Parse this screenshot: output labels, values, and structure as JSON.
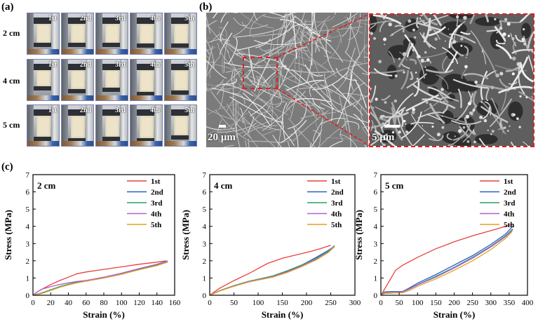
{
  "panel_a": {
    "label": "(a)",
    "column_labels": [
      "1st",
      "2nd",
      "3rd",
      "4th",
      "5th"
    ],
    "rows": [
      {
        "label": "2 cm",
        "sample_len": [
          0.72,
          0.7,
          0.72,
          0.74,
          0.74
        ]
      },
      {
        "label": "4 cm",
        "sample_len": [
          0.6,
          0.72,
          0.66,
          0.82,
          0.76
        ]
      },
      {
        "label": "5 cm",
        "sample_len": [
          0.78,
          0.84,
          0.8,
          0.84,
          0.74
        ]
      }
    ]
  },
  "panel_b": {
    "label": "(b)",
    "left_scale": "20 µm",
    "right_scale": "5 µm",
    "zoom_color": "#e02020"
  },
  "panel_c": {
    "label": "(c)"
  },
  "chart_data": [
    {
      "type": "line",
      "annotation": "2 cm",
      "xlabel": "Strain (%)",
      "ylabel": "Stress (MPa)",
      "xlim": [
        0,
        160
      ],
      "ylim": [
        0,
        7
      ],
      "xticks": [
        0,
        20,
        40,
        60,
        80,
        100,
        120,
        140,
        160
      ],
      "yticks": [
        0,
        1,
        2,
        3,
        4,
        5,
        6,
        7
      ],
      "legend": "top-right",
      "series": [
        {
          "name": "1st",
          "color": "#e8413c",
          "points": [
            [
              0,
              0
            ],
            [
              5,
              0.2
            ],
            [
              12,
              0.4
            ],
            [
              20,
              0.62
            ],
            [
              30,
              0.85
            ],
            [
              40,
              1.05
            ],
            [
              50,
              1.25
            ],
            [
              60,
              1.35
            ],
            [
              80,
              1.5
            ],
            [
              100,
              1.65
            ],
            [
              120,
              1.8
            ],
            [
              140,
              1.92
            ],
            [
              150,
              2.0
            ]
          ]
        },
        {
          "name": "2nd",
          "color": "#2f5fc4",
          "points": [
            [
              0,
              0
            ],
            [
              10,
              0.12
            ],
            [
              20,
              0.3
            ],
            [
              30,
              0.48
            ],
            [
              40,
              0.62
            ],
            [
              50,
              0.75
            ],
            [
              60,
              0.82
            ],
            [
              80,
              1.0
            ],
            [
              100,
              1.22
            ],
            [
              120,
              1.5
            ],
            [
              140,
              1.75
            ],
            [
              152,
              1.95
            ]
          ]
        },
        {
          "name": "3rd",
          "color": "#2aa06a",
          "points": [
            [
              0,
              0
            ],
            [
              10,
              0.14
            ],
            [
              20,
              0.32
            ],
            [
              30,
              0.5
            ],
            [
              40,
              0.64
            ],
            [
              50,
              0.76
            ],
            [
              60,
              0.84
            ],
            [
              80,
              1.02
            ],
            [
              100,
              1.24
            ],
            [
              120,
              1.5
            ],
            [
              140,
              1.76
            ],
            [
              150,
              1.92
            ]
          ]
        },
        {
          "name": "4th",
          "color": "#b45cd6",
          "points": [
            [
              0,
              0
            ],
            [
              5,
              0.2
            ],
            [
              10,
              0.35
            ],
            [
              20,
              0.5
            ],
            [
              30,
              0.62
            ],
            [
              40,
              0.72
            ],
            [
              50,
              0.8
            ],
            [
              60,
              0.86
            ],
            [
              80,
              1.05
            ],
            [
              100,
              1.28
            ],
            [
              120,
              1.55
            ],
            [
              140,
              1.8
            ],
            [
              152,
              2.0
            ]
          ]
        },
        {
          "name": "5th",
          "color": "#e0a020",
          "points": [
            [
              0,
              0
            ],
            [
              10,
              0.1
            ],
            [
              20,
              0.28
            ],
            [
              30,
              0.46
            ],
            [
              40,
              0.6
            ],
            [
              50,
              0.72
            ],
            [
              60,
              0.82
            ],
            [
              80,
              1.0
            ],
            [
              100,
              1.22
            ],
            [
              120,
              1.48
            ],
            [
              140,
              1.72
            ],
            [
              152,
              1.92
            ]
          ]
        }
      ]
    },
    {
      "type": "line",
      "annotation": "4 cm",
      "xlabel": "Strain (%)",
      "ylabel": "Stress (MPa)",
      "xlim": [
        0,
        300
      ],
      "ylim": [
        0,
        7
      ],
      "xticks": [
        0,
        50,
        100,
        150,
        200,
        250,
        300
      ],
      "yticks": [
        0,
        1,
        2,
        3,
        4,
        5,
        6,
        7
      ],
      "legend": "top-right",
      "series": [
        {
          "name": "1st",
          "color": "#e8413c",
          "points": [
            [
              0,
              0
            ],
            [
              20,
              0.4
            ],
            [
              50,
              0.85
            ],
            [
              80,
              1.25
            ],
            [
              100,
              1.55
            ],
            [
              120,
              1.85
            ],
            [
              150,
              2.15
            ],
            [
              180,
              2.35
            ],
            [
              210,
              2.55
            ],
            [
              230,
              2.72
            ],
            [
              250,
              2.9
            ]
          ]
        },
        {
          "name": "2nd",
          "color": "#2f5fc4",
          "points": [
            [
              0,
              0
            ],
            [
              20,
              0.25
            ],
            [
              50,
              0.55
            ],
            [
              80,
              0.8
            ],
            [
              100,
              0.92
            ],
            [
              130,
              1.1
            ],
            [
              160,
              1.4
            ],
            [
              190,
              1.75
            ],
            [
              220,
              2.2
            ],
            [
              245,
              2.6
            ],
            [
              258,
              2.85
            ]
          ]
        },
        {
          "name": "3rd",
          "color": "#2aa06a",
          "points": [
            [
              0,
              0
            ],
            [
              20,
              0.26
            ],
            [
              50,
              0.56
            ],
            [
              80,
              0.8
            ],
            [
              100,
              0.93
            ],
            [
              130,
              1.12
            ],
            [
              160,
              1.42
            ],
            [
              190,
              1.76
            ],
            [
              220,
              2.15
            ],
            [
              245,
              2.55
            ],
            [
              258,
              2.88
            ]
          ]
        },
        {
          "name": "4th",
          "color": "#b45cd6",
          "points": [
            [
              0,
              0
            ],
            [
              20,
              0.25
            ],
            [
              50,
              0.54
            ],
            [
              80,
              0.78
            ],
            [
              100,
              0.9
            ],
            [
              130,
              1.08
            ],
            [
              160,
              1.36
            ],
            [
              190,
              1.7
            ],
            [
              220,
              2.1
            ],
            [
              245,
              2.5
            ],
            [
              255,
              2.8
            ]
          ]
        },
        {
          "name": "5th",
          "color": "#e0a020",
          "points": [
            [
              0,
              0
            ],
            [
              20,
              0.24
            ],
            [
              50,
              0.52
            ],
            [
              80,
              0.76
            ],
            [
              100,
              0.88
            ],
            [
              130,
              1.05
            ],
            [
              160,
              1.32
            ],
            [
              190,
              1.66
            ],
            [
              220,
              2.05
            ],
            [
              245,
              2.48
            ],
            [
              258,
              2.82
            ]
          ]
        }
      ]
    },
    {
      "type": "line",
      "annotation": "5 cm",
      "xlabel": "Strain (%)",
      "ylabel": "Stress (MPa)",
      "xlim": [
        0,
        400
      ],
      "ylim": [
        0,
        7
      ],
      "xticks": [
        0,
        50,
        100,
        150,
        200,
        250,
        300,
        350,
        400
      ],
      "yticks": [
        0,
        1,
        2,
        3,
        4,
        5,
        6,
        7
      ],
      "legend": "top-right",
      "series": [
        {
          "name": "1st",
          "color": "#e8413c",
          "points": [
            [
              0,
              0
            ],
            [
              10,
              0.35
            ],
            [
              25,
              0.9
            ],
            [
              40,
              1.45
            ],
            [
              60,
              1.75
            ],
            [
              100,
              2.2
            ],
            [
              150,
              2.7
            ],
            [
              200,
              3.1
            ],
            [
              250,
              3.45
            ],
            [
              300,
              3.75
            ],
            [
              340,
              4.0
            ],
            [
              358,
              4.1
            ]
          ]
        },
        {
          "name": "2nd",
          "color": "#2f5fc4",
          "points": [
            [
              0,
              0
            ],
            [
              10,
              0.2
            ],
            [
              30,
              0.22
            ],
            [
              60,
              0.22
            ],
            [
              80,
              0.45
            ],
            [
              100,
              0.7
            ],
            [
              150,
              1.2
            ],
            [
              200,
              1.75
            ],
            [
              250,
              2.3
            ],
            [
              300,
              2.95
            ],
            [
              340,
              3.55
            ],
            [
              360,
              4.0
            ]
          ]
        },
        {
          "name": "3rd",
          "color": "#2aa06a",
          "points": [
            [
              0,
              0
            ],
            [
              10,
              0.18
            ],
            [
              30,
              0.2
            ],
            [
              60,
              0.2
            ],
            [
              80,
              0.4
            ],
            [
              100,
              0.62
            ],
            [
              150,
              1.1
            ],
            [
              200,
              1.62
            ],
            [
              250,
              2.2
            ],
            [
              300,
              2.85
            ],
            [
              340,
              3.45
            ],
            [
              360,
              3.85
            ]
          ]
        },
        {
          "name": "4th",
          "color": "#b45cd6",
          "points": [
            [
              0,
              0
            ],
            [
              10,
              0.15
            ],
            [
              30,
              0.18
            ],
            [
              60,
              0.2
            ],
            [
              80,
              0.38
            ],
            [
              100,
              0.6
            ],
            [
              150,
              1.05
            ],
            [
              200,
              1.58
            ],
            [
              250,
              2.15
            ],
            [
              300,
              2.8
            ],
            [
              340,
              3.4
            ],
            [
              360,
              3.8
            ]
          ]
        },
        {
          "name": "5th",
          "color": "#e0a020",
          "points": [
            [
              0,
              0
            ],
            [
              10,
              0.1
            ],
            [
              30,
              0.12
            ],
            [
              60,
              0.15
            ],
            [
              80,
              0.3
            ],
            [
              100,
              0.52
            ],
            [
              150,
              0.95
            ],
            [
              200,
              1.45
            ],
            [
              250,
              2.0
            ],
            [
              300,
              2.65
            ],
            [
              340,
              3.3
            ],
            [
              358,
              3.7
            ]
          ]
        }
      ]
    }
  ]
}
